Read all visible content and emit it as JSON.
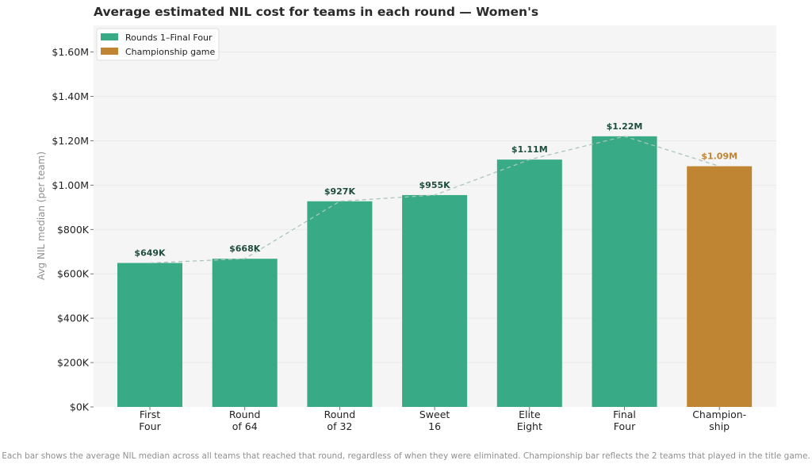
{
  "chart_data": {
    "type": "bar",
    "title": "Average estimated NIL cost for teams in each round — Women's",
    "xlabel": "",
    "ylabel": "Avg NIL median (per team)",
    "ylim": [
      0,
      1720000
    ],
    "yticks": [
      0,
      200000,
      400000,
      600000,
      800000,
      1000000,
      1200000,
      1400000,
      1600000
    ],
    "ytick_labels": [
      "$0K",
      "$200K",
      "$400K",
      "$600K",
      "$800K",
      "$1.00M",
      "$1.20M",
      "$1.40M",
      "$1.60M"
    ],
    "categories": [
      [
        "First",
        "Four"
      ],
      [
        "Round",
        "of 64"
      ],
      [
        "Round",
        "of 32"
      ],
      [
        "Sweet",
        "16"
      ],
      [
        "Elite",
        "Eight"
      ],
      [
        "Final",
        "Four"
      ],
      [
        "Champion-",
        "ship"
      ]
    ],
    "values": [
      649000,
      668000,
      927000,
      955000,
      1115000,
      1220000,
      1085000
    ],
    "value_labels": [
      "$649K",
      "$668K",
      "$927K",
      "$955K",
      "$1.11M",
      "$1.22M",
      "$1.09M"
    ],
    "group": [
      "rounds",
      "rounds",
      "rounds",
      "rounds",
      "rounds",
      "rounds",
      "championship"
    ],
    "legend": [
      {
        "key": "rounds",
        "label": "Rounds 1–Final Four"
      },
      {
        "key": "championship",
        "label": "Championship game"
      }
    ],
    "legend_position": "top-left",
    "trend_line": true,
    "grid": true
  },
  "colors": {
    "rounds": "#38aa85",
    "championship": "#c08533",
    "rounds_label": "#1f4d3d",
    "championship_label": "#c08533",
    "trend": "#a9c6bc",
    "plot_bg": "#f5f5f5",
    "grid": "#e6e6e6"
  },
  "footnote": "Each bar shows the average NIL median across all teams that reached that round, regardless of when they were eliminated. Championship bar reflects the 2 teams that played in the title game."
}
